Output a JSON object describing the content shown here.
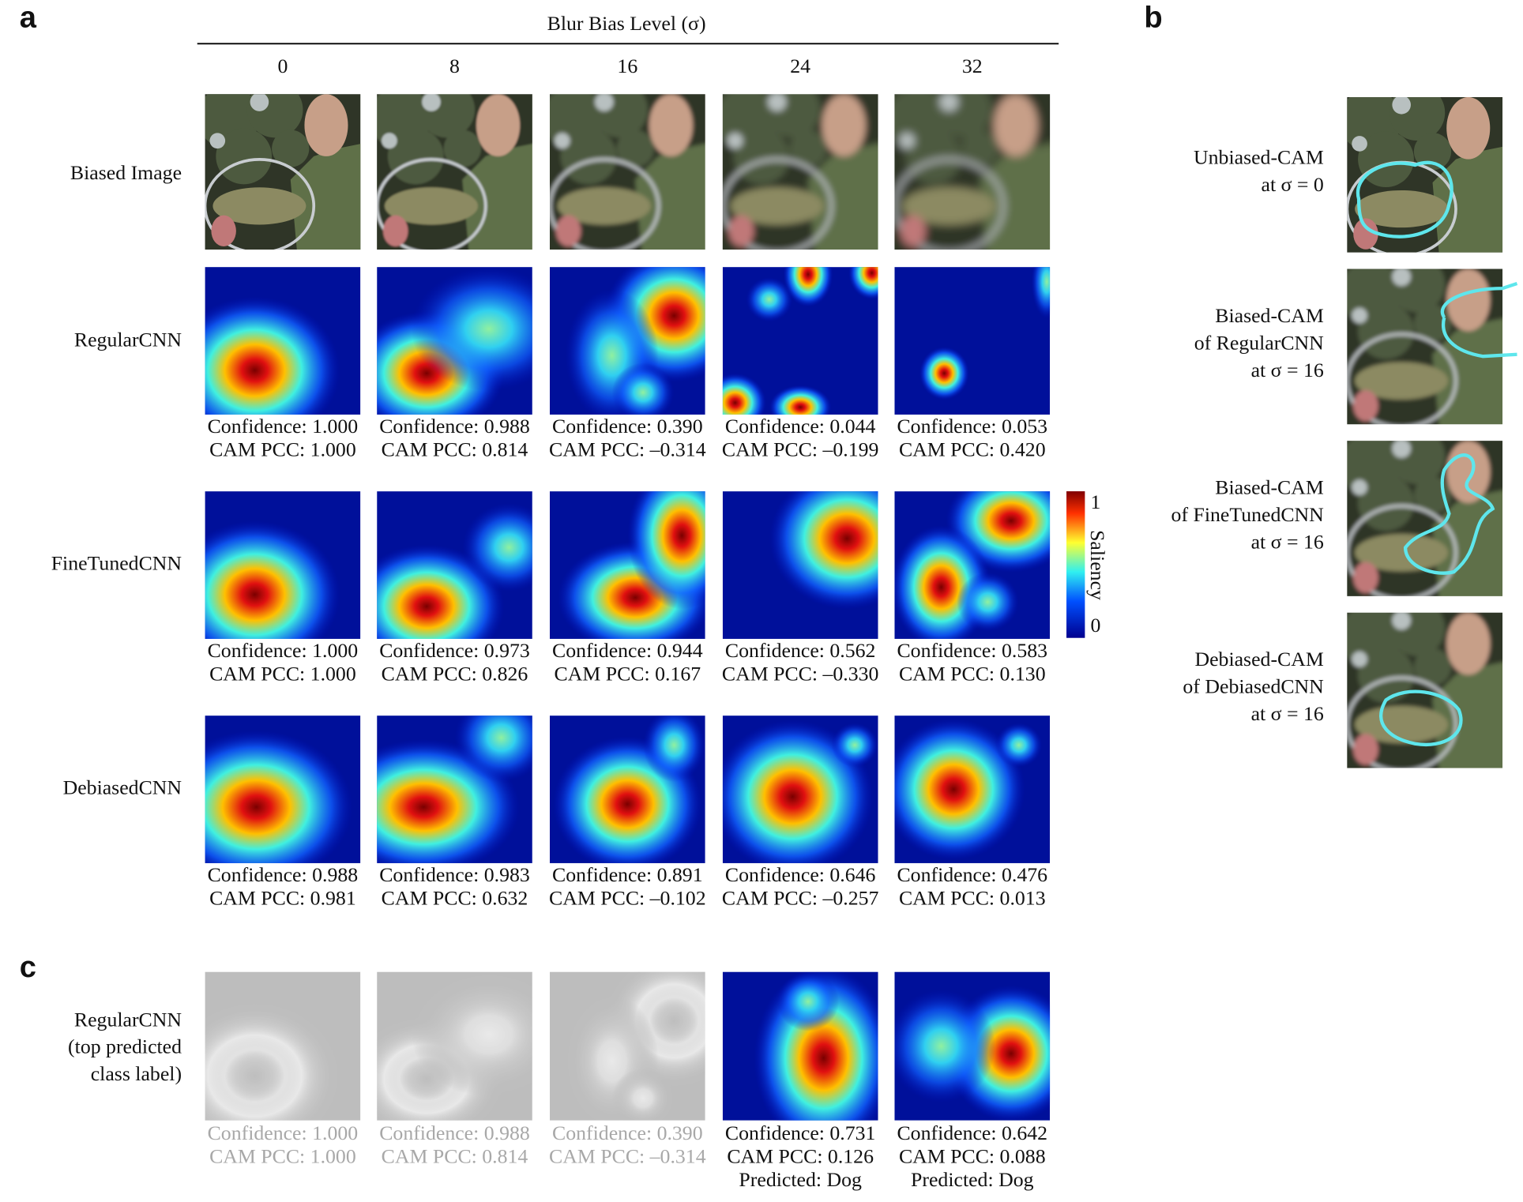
{
  "panels": {
    "a": "a",
    "b": "b",
    "c": "c"
  },
  "header": {
    "title": "Blur Bias Level (σ)",
    "columns": [
      "0",
      "8",
      "16",
      "24",
      "32"
    ]
  },
  "rows": [
    {
      "label": "Biased Image"
    },
    {
      "label": "RegularCNN",
      "cells": [
        {
          "confidence": "Confidence: 1.000",
          "cam_pcc": "CAM PCC: 1.000"
        },
        {
          "confidence": "Confidence: 0.988",
          "cam_pcc": "CAM PCC: 0.814"
        },
        {
          "confidence": "Confidence: 0.390",
          "cam_pcc": "CAM PCC: –0.314"
        },
        {
          "confidence": "Confidence: 0.044",
          "cam_pcc": "CAM PCC: –0.199"
        },
        {
          "confidence": "Confidence: 0.053",
          "cam_pcc": "CAM PCC: 0.420"
        }
      ]
    },
    {
      "label": "FineTunedCNN",
      "cells": [
        {
          "confidence": "Confidence: 1.000",
          "cam_pcc": "CAM PCC: 1.000"
        },
        {
          "confidence": "Confidence: 0.973",
          "cam_pcc": "CAM PCC: 0.826"
        },
        {
          "confidence": "Confidence: 0.944",
          "cam_pcc": "CAM PCC: 0.167"
        },
        {
          "confidence": "Confidence: 0.562",
          "cam_pcc": "CAM PCC: –0.330"
        },
        {
          "confidence": "Confidence: 0.583",
          "cam_pcc": "CAM PCC: 0.130"
        }
      ]
    },
    {
      "label": "DebiasedCNN",
      "cells": [
        {
          "confidence": "Confidence: 0.988",
          "cam_pcc": "CAM PCC: 0.981"
        },
        {
          "confidence": "Confidence: 0.983",
          "cam_pcc": "CAM PCC: 0.632"
        },
        {
          "confidence": "Confidence: 0.891",
          "cam_pcc": "CAM PCC: –0.102"
        },
        {
          "confidence": "Confidence: 0.646",
          "cam_pcc": "CAM PCC: –0.257"
        },
        {
          "confidence": "Confidence: 0.476",
          "cam_pcc": "CAM PCC: 0.013"
        }
      ]
    }
  ],
  "colorbar": {
    "max": "1",
    "min": "0",
    "label": "Saliency"
  },
  "panel_c": {
    "label": [
      "RegularCNN",
      "(top predicted",
      "class label)"
    ],
    "cells": [
      {
        "confidence": "Confidence: 1.000",
        "cam_pcc": "CAM PCC: 1.000"
      },
      {
        "confidence": "Confidence: 0.988",
        "cam_pcc": "CAM PCC: 0.814"
      },
      {
        "confidence": "Confidence: 0.390",
        "cam_pcc": "CAM PCC: –0.314"
      },
      {
        "confidence": "Confidence: 0.731",
        "cam_pcc": "CAM PCC: 0.126",
        "predicted": "Predicted: Dog"
      },
      {
        "confidence": "Confidence: 0.642",
        "cam_pcc": "CAM PCC: 0.088",
        "predicted": "Predicted: Dog"
      }
    ]
  },
  "panel_b": [
    {
      "label": [
        "Unbiased-CAM",
        "at σ = 0"
      ]
    },
    {
      "label": [
        "Biased-CAM",
        "of RegularCNN",
        "at σ = 16"
      ]
    },
    {
      "label": [
        "Biased-CAM",
        "of FineTunedCNN",
        "at σ = 16"
      ]
    },
    {
      "label": [
        "Debiased-CAM",
        "of DebiasedCNN",
        "at σ = 16"
      ]
    }
  ]
}
